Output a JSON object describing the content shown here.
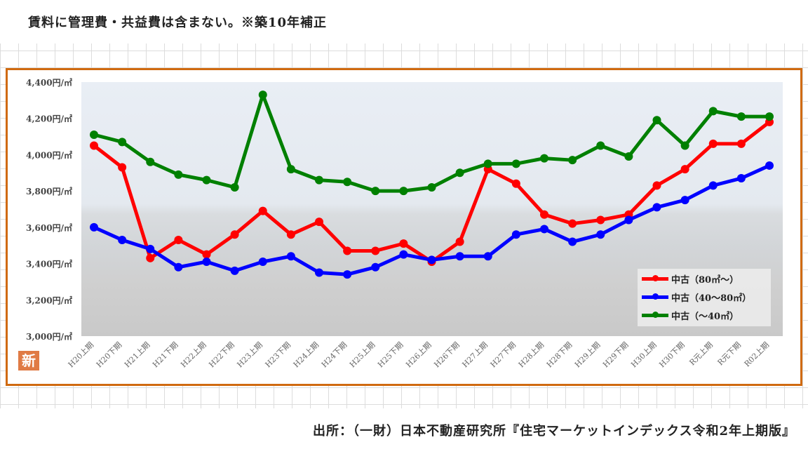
{
  "header": {
    "title": "賃料に管理費・共益費は含まない。※築10年補正"
  },
  "footer": {
    "source": "出所：（一財）日本不動産研究所『住宅マーケットインデックス令和2年上期版』"
  },
  "badge": {
    "label": "新"
  },
  "chart_data": {
    "type": "line",
    "title": "",
    "xlabel": "",
    "ylabel": "",
    "ylim": [
      3000,
      4400
    ],
    "yticks": [
      3000,
      3200,
      3400,
      3600,
      3800,
      4000,
      4200,
      4400
    ],
    "ytick_labels": [
      "3,000円/㎡",
      "3,200円/㎡",
      "3,400円/㎡",
      "3,600円/㎡",
      "3,800円/㎡",
      "4,000円/㎡",
      "4,200円/㎡",
      "4,400円/㎡"
    ],
    "grid": false,
    "legend_position": "bottom-right",
    "categories": [
      "H20上期",
      "H20下期",
      "H21上期",
      "H21下期",
      "H22上期",
      "H22下期",
      "H23上期",
      "H23下期",
      "H24上期",
      "H24下期",
      "H25上期",
      "H25下期",
      "H26上期",
      "H26下期",
      "H27上期",
      "H27下期",
      "H28上期",
      "H28下期",
      "H29上期",
      "H29下期",
      "H30上期",
      "H30下期",
      "R元上期",
      "R元下期",
      "R02上期"
    ],
    "series": [
      {
        "name": "中古（80㎡～）",
        "color": "#ff0000",
        "values": [
          4050,
          3930,
          3430,
          3530,
          3450,
          3560,
          3690,
          3560,
          3630,
          3470,
          3470,
          3510,
          3410,
          3520,
          3920,
          3840,
          3670,
          3620,
          3640,
          3670,
          3830,
          3920,
          4060,
          4060,
          4180
        ]
      },
      {
        "name": "中古（40～80㎡）",
        "color": "#0000ff",
        "values": [
          3600,
          3530,
          3480,
          3380,
          3410,
          3360,
          3410,
          3440,
          3350,
          3340,
          3380,
          3450,
          3420,
          3440,
          3440,
          3560,
          3590,
          3520,
          3560,
          3640,
          3710,
          3750,
          3830,
          3870,
          3940
        ]
      },
      {
        "name": "中古（～40㎡）",
        "color": "#008000",
        "values": [
          4110,
          4070,
          3960,
          3890,
          3860,
          3820,
          4330,
          3920,
          3860,
          3850,
          3800,
          3800,
          3820,
          3900,
          3950,
          3950,
          3980,
          3970,
          4050,
          3990,
          4190,
          4050,
          4240,
          4210,
          4210
        ]
      }
    ]
  }
}
